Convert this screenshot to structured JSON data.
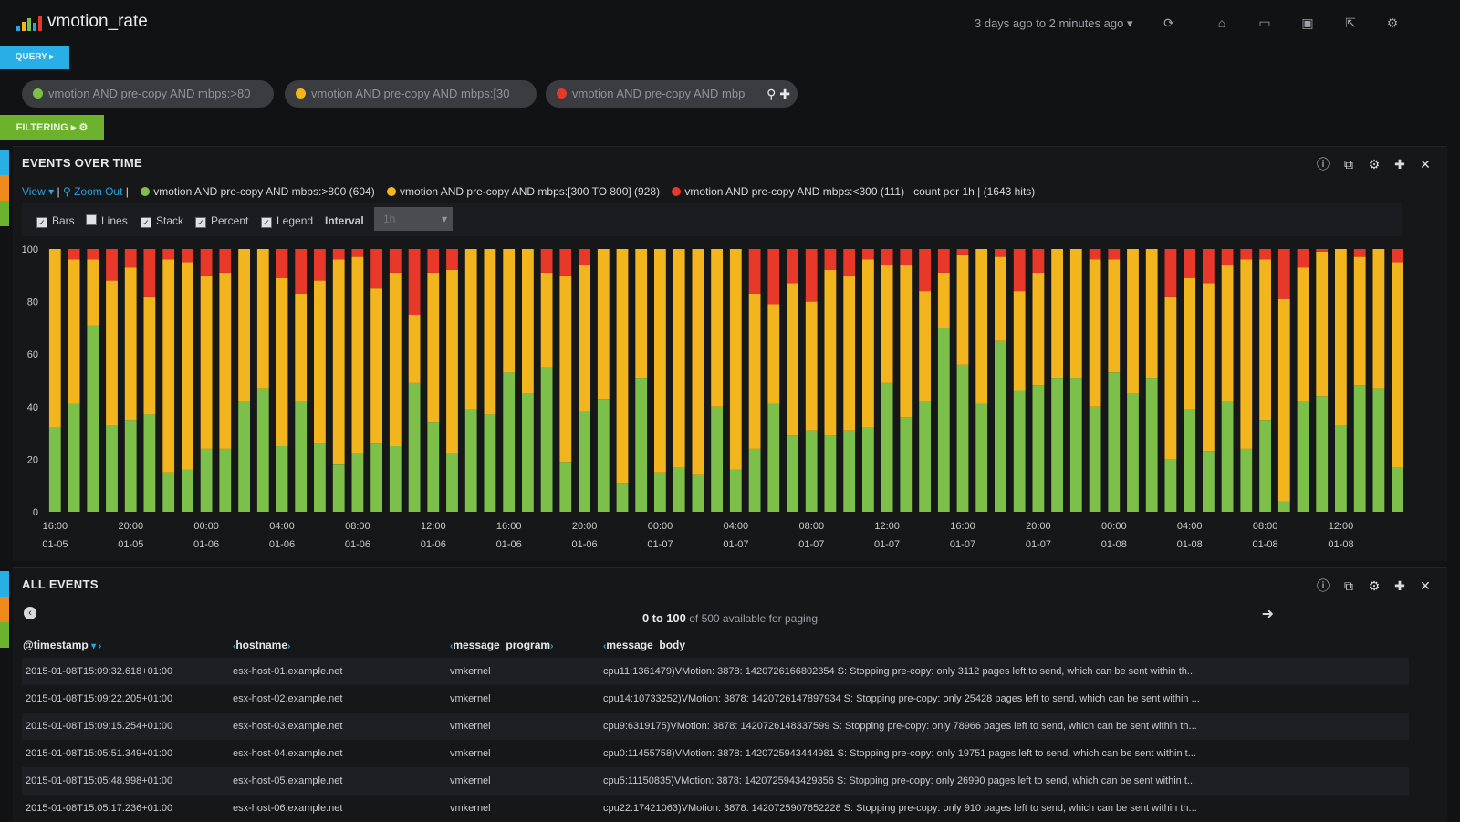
{
  "app": {
    "title": "vmotion_rate"
  },
  "top": {
    "time_range": "3 days ago to 2 minutes ago",
    "icons": [
      "refresh-icon",
      "home-icon",
      "folder-open-icon",
      "save-icon",
      "share-icon",
      "gear-icon"
    ]
  },
  "query_button": "QUERY",
  "filter_button": "FILTERING",
  "queries": [
    {
      "text": "vmotion AND pre-copy AND mbps:>80",
      "color": "#7cc04a"
    },
    {
      "text": "vmotion AND pre-copy AND mbps:[30",
      "color": "#f2b51e"
    },
    {
      "text": "vmotion AND pre-copy AND mbp",
      "color": "#e8382a"
    }
  ],
  "events_panel": {
    "title": "EVENTS OVER TIME",
    "view_label": "View",
    "zoom_out_label": "Zoom Out",
    "legend": [
      {
        "label": "vmotion AND pre-copy AND mbps:>800 (604)",
        "color": "#7cc04a"
      },
      {
        "label": "vmotion AND pre-copy AND mbps:[300 TO 800] (928)",
        "color": "#f2b51e"
      },
      {
        "label": "vmotion AND pre-copy AND mbps:<300 (111)",
        "color": "#e8382a"
      }
    ],
    "summary": "count per 1h | (1643 hits)",
    "options": [
      {
        "label": "Bars",
        "checked": true
      },
      {
        "label": "Lines",
        "checked": false
      },
      {
        "label": "Stack",
        "checked": true
      },
      {
        "label": "Percent",
        "checked": true
      },
      {
        "label": "Legend",
        "checked": true
      }
    ],
    "interval_label": "Interval",
    "interval_value": "1h"
  },
  "chart_data": {
    "type": "bar",
    "stacked": true,
    "percent": true,
    "ylim": [
      0,
      100
    ],
    "yticks": [
      0,
      20,
      40,
      60,
      80,
      100
    ],
    "xtick_labels": [
      [
        "16:00",
        "01-05"
      ],
      [
        "20:00",
        "01-05"
      ],
      [
        "00:00",
        "01-06"
      ],
      [
        "04:00",
        "01-06"
      ],
      [
        "08:00",
        "01-06"
      ],
      [
        "12:00",
        "01-06"
      ],
      [
        "16:00",
        "01-06"
      ],
      [
        "20:00",
        "01-06"
      ],
      [
        "00:00",
        "01-07"
      ],
      [
        "04:00",
        "01-07"
      ],
      [
        "08:00",
        "01-07"
      ],
      [
        "12:00",
        "01-07"
      ],
      [
        "16:00",
        "01-07"
      ],
      [
        "20:00",
        "01-07"
      ],
      [
        "00:00",
        "01-08"
      ],
      [
        "04:00",
        "01-08"
      ],
      [
        "08:00",
        "01-08"
      ],
      [
        "12:00",
        "01-08"
      ]
    ],
    "series": [
      {
        "name": "vmotion AND pre-copy AND mbps:>800",
        "color": "#7cc04a",
        "values": [
          32,
          41,
          71,
          33,
          35,
          37,
          15,
          16,
          24,
          24,
          42,
          47,
          25,
          42,
          26,
          18,
          22,
          26,
          25,
          49,
          34,
          22,
          39,
          37,
          53,
          45,
          55,
          19,
          38,
          43,
          11,
          51,
          15,
          17,
          14,
          40,
          16,
          24,
          41,
          29,
          31,
          29,
          31,
          32,
          49,
          36,
          42,
          70,
          56,
          41,
          65,
          46,
          48,
          51,
          51,
          40,
          53,
          45,
          51,
          20,
          39,
          23,
          42,
          24,
          35,
          4,
          42,
          44,
          33,
          48,
          47,
          17
        ]
      },
      {
        "name": "vmotion AND pre-copy AND mbps:[300 TO 800]",
        "color": "#f2b51e",
        "values": [
          68,
          55,
          25,
          55,
          58,
          45,
          81,
          79,
          66,
          67,
          58,
          53,
          64,
          41,
          62,
          78,
          75,
          59,
          66,
          26,
          57,
          70,
          61,
          63,
          47,
          55,
          36,
          71,
          56,
          57,
          89,
          49,
          85,
          83,
          86,
          60,
          84,
          59,
          38,
          58,
          49,
          63,
          59,
          64,
          45,
          58,
          42,
          21,
          42,
          59,
          32,
          38,
          43,
          49,
          49,
          56,
          43,
          55,
          49,
          62,
          50,
          64,
          52,
          72,
          61,
          77,
          51,
          55,
          67,
          49,
          53,
          78
        ]
      },
      {
        "name": "vmotion AND pre-copy AND mbps:<300",
        "color": "#e8382a",
        "values": [
          0,
          4,
          4,
          12,
          7,
          18,
          4,
          5,
          10,
          9,
          0,
          0,
          11,
          17,
          12,
          4,
          3,
          15,
          9,
          25,
          9,
          8,
          0,
          0,
          0,
          0,
          9,
          10,
          6,
          0,
          0,
          0,
          0,
          0,
          0,
          0,
          0,
          17,
          21,
          13,
          20,
          8,
          10,
          4,
          6,
          6,
          16,
          9,
          2,
          0,
          3,
          16,
          9,
          0,
          0,
          4,
          4,
          0,
          0,
          18,
          11,
          13,
          6,
          4,
          4,
          19,
          7,
          1,
          0,
          3,
          0,
          5
        ]
      }
    ]
  },
  "all_events": {
    "title": "ALL EVENTS",
    "paging": {
      "from": "0",
      "to_word": "to",
      "to": "100",
      "suffix": "of 500 available for paging"
    },
    "columns": [
      "@timestamp",
      "hostname",
      "message_program",
      "message_body"
    ],
    "rows": [
      [
        "2015-01-08T15:09:32.618+01:00",
        "esx-host-01.example.net",
        "vmkernel",
        "cpu11:1361479)VMotion: 3878: 1420726166802354 S: Stopping pre-copy: only 3112 pages left to send, which can be sent within th..."
      ],
      [
        "2015-01-08T15:09:22.205+01:00",
        "esx-host-02.example.net",
        "vmkernel",
        "cpu14:10733252)VMotion: 3878: 1420726147897934 S: Stopping pre-copy: only 25428 pages left to send, which can be sent within ..."
      ],
      [
        "2015-01-08T15:09:15.254+01:00",
        "esx-host-03.example.net",
        "vmkernel",
        "cpu9:6319175)VMotion: 3878: 1420726148337599 S: Stopping pre-copy: only 78966 pages left to send, which can be sent within th..."
      ],
      [
        "2015-01-08T15:05:51.349+01:00",
        "esx-host-04.example.net",
        "vmkernel",
        "cpu0:11455758)VMotion: 3878: 1420725943444981 S: Stopping pre-copy: only 19751 pages left to send, which can be sent within t..."
      ],
      [
        "2015-01-08T15:05:48.998+01:00",
        "esx-host-05.example.net",
        "vmkernel",
        "cpu5:11150835)VMotion: 3878: 1420725943429356 S: Stopping pre-copy: only 26990 pages left to send, which can be sent within t..."
      ],
      [
        "2015-01-08T15:05:17.236+01:00",
        "esx-host-06.example.net",
        "vmkernel",
        "cpu22:17421063)VMotion: 3878: 1420725907652228 S: Stopping pre-copy: only 910 pages left to send, which can be sent within th..."
      ]
    ]
  }
}
